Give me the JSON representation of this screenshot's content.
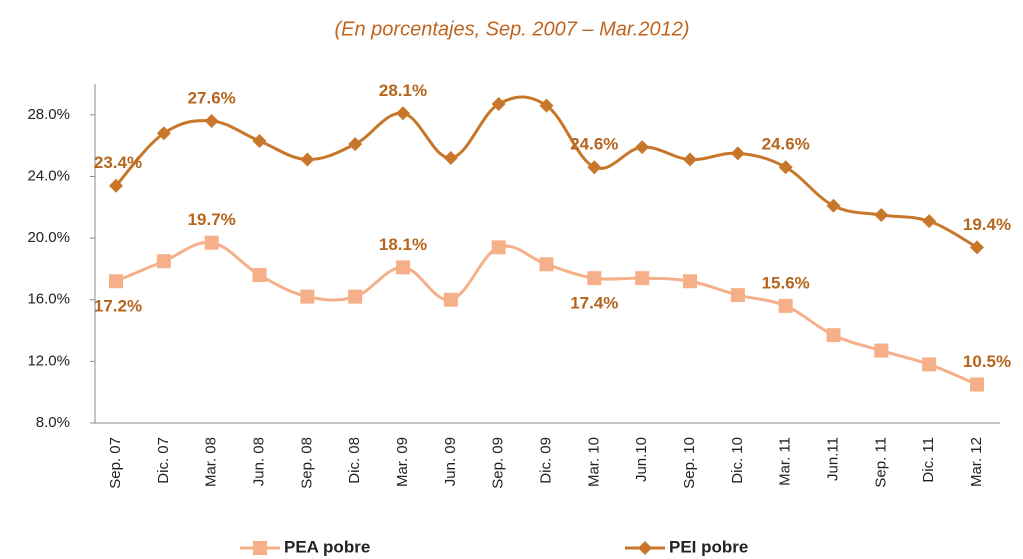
{
  "chart_data": {
    "type": "line",
    "title": "(En porcentajes, Sep. 2007 – Mar.2012)",
    "categories": [
      "Sep. 07",
      "Dic. 07",
      "Mar. 08",
      "Jun. 08",
      "Sep. 08",
      "Dic. 08",
      "Mar. 09",
      "Jun. 09",
      "Sep. 09",
      "Dic. 09",
      "Mar. 10",
      "Jun.10",
      "Sep. 10",
      "Dic. 10",
      "Mar. 11",
      "Jun.11",
      "Sep. 11",
      "Dic. 11",
      "Mar. 12"
    ],
    "series": [
      {
        "name": "PEA pobre",
        "color": "#f5b08a",
        "marker": "square",
        "values": [
          17.2,
          18.5,
          19.7,
          17.6,
          16.2,
          16.2,
          18.1,
          16.0,
          19.4,
          18.3,
          17.4,
          17.4,
          17.2,
          16.3,
          15.6,
          13.7,
          12.7,
          11.8,
          10.5
        ],
        "value_labels": [
          "17.2%",
          null,
          "19.7%",
          null,
          null,
          null,
          "18.1%",
          null,
          null,
          null,
          "17.4%",
          null,
          null,
          null,
          "15.6%",
          null,
          null,
          null,
          "10.5%"
        ]
      },
      {
        "name": "PEI pobre",
        "color": "#c8772a",
        "marker": "diamond",
        "values": [
          23.4,
          26.8,
          27.6,
          26.3,
          25.1,
          26.1,
          28.1,
          25.2,
          28.7,
          28.6,
          24.6,
          25.9,
          25.1,
          25.5,
          24.6,
          22.1,
          21.5,
          21.1,
          19.4
        ],
        "value_labels": [
          "23.4%",
          null,
          "27.6%",
          null,
          null,
          null,
          "28.1%",
          null,
          null,
          null,
          "24.6%",
          null,
          null,
          null,
          "24.6%",
          null,
          null,
          null,
          "19.4%"
        ]
      }
    ],
    "ylim": [
      8,
      30
    ],
    "yticks": [
      {
        "value": 8,
        "label": "8.0%"
      },
      {
        "value": 12,
        "label": "12.0%"
      },
      {
        "value": 16,
        "label": "16.0%"
      },
      {
        "value": 20,
        "label": "20.0%"
      },
      {
        "value": 24,
        "label": "24.0%"
      },
      {
        "value": 28,
        "label": "28.0%"
      }
    ],
    "grid": false
  }
}
